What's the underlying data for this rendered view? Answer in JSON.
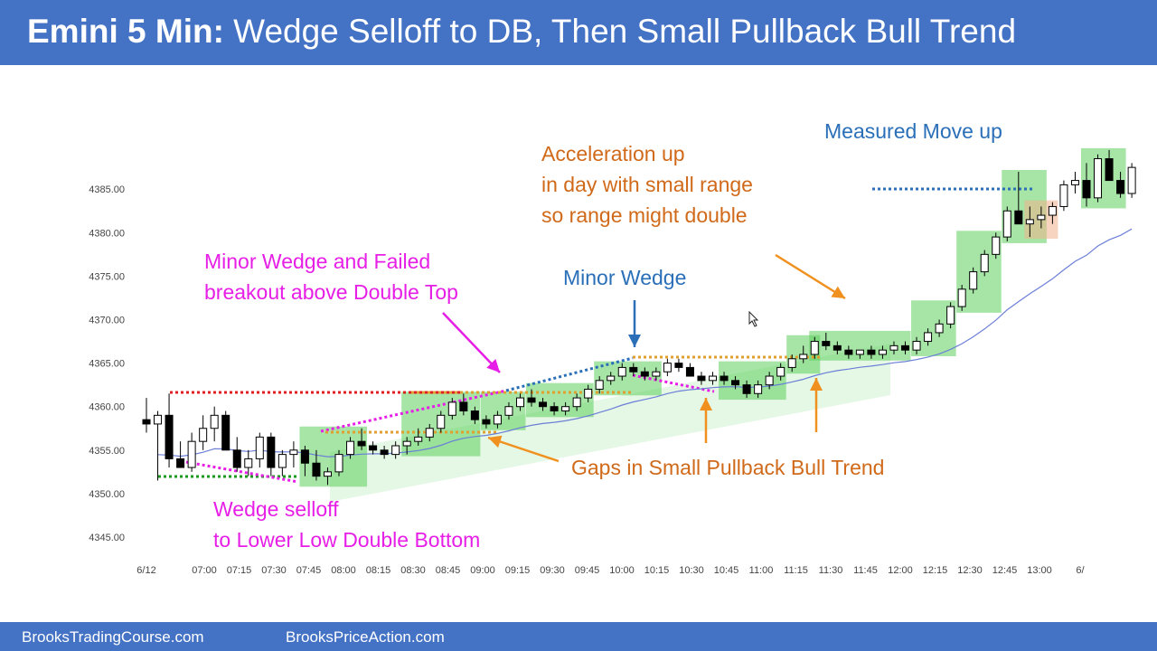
{
  "header": {
    "title_bold": "Emini 5 Min:",
    "title_rest": " Wedge Selloff to DB, Then Small Pullback Bull Trend"
  },
  "footer": {
    "left": "BrooksTradingCourse.com",
    "right": "BrooksPriceAction.com"
  },
  "annotations": {
    "wedge_selloff_1": "Wedge selloff",
    "wedge_selloff_2": "to Lower Low Double Bottom",
    "minor_wedge_failed_1": "Minor Wedge and Failed",
    "minor_wedge_failed_2": "breakout above Double Top",
    "minor_wedge": "Minor Wedge",
    "acceleration_1": "Acceleration up",
    "acceleration_2": "in day with small range",
    "acceleration_3": "so range might double",
    "measured_move": "Measured Move up",
    "gaps": "Gaps in Small Pullback Bull Trend"
  },
  "colors": {
    "header": "#4472c4",
    "bull_highlight": "#5ccf5c",
    "ema": "#6b7fd7",
    "magenta": "#e61ee6",
    "orange": "#d06a1a",
    "blue": "#2a6fb8"
  },
  "chart_data": {
    "type": "candlestick",
    "title": "",
    "ylim": [
      4345,
      4390
    ],
    "y_ticks": [
      "4345.00",
      "4350.00",
      "4355.00",
      "4360.00",
      "4365.00",
      "4370.00",
      "4375.00",
      "4380.00",
      "4385.00"
    ],
    "x_ticks": [
      "6/12",
      "07:00",
      "07:15",
      "07:30",
      "07:45",
      "08:00",
      "08:15",
      "08:30",
      "08:45",
      "09:00",
      "09:15",
      "09:30",
      "09:45",
      "10:00",
      "10:15",
      "10:30",
      "10:45",
      "11:00",
      "11:15",
      "11:30",
      "11:45",
      "12:00",
      "12:15",
      "12:30",
      "12:45",
      "13:00",
      "6/"
    ],
    "grid": false,
    "candles": [
      [
        4358.5,
        4361,
        4357,
        4358
      ],
      [
        4358,
        4359.5,
        4351.5,
        4359
      ],
      [
        4359,
        4361.5,
        4353,
        4354
      ],
      [
        4354,
        4356,
        4353,
        4353
      ],
      [
        4353,
        4357,
        4352.5,
        4356
      ],
      [
        4356,
        4359,
        4355,
        4357.5
      ],
      [
        4357.5,
        4360,
        4356,
        4359
      ],
      [
        4359,
        4359.5,
        4355,
        4355
      ],
      [
        4355,
        4356.5,
        4352.5,
        4353
      ],
      [
        4353,
        4355,
        4352,
        4354
      ],
      [
        4354,
        4357,
        4353,
        4356.5
      ],
      [
        4356.5,
        4357,
        4352,
        4353
      ],
      [
        4353,
        4355,
        4352,
        4354.5
      ],
      [
        4354.5,
        4356,
        4353,
        4355
      ],
      [
        4355,
        4355.5,
        4352,
        4353.5
      ],
      [
        4353.5,
        4355,
        4351.5,
        4352
      ],
      [
        4352,
        4353,
        4351,
        4352.5
      ],
      [
        4352.5,
        4355,
        4352,
        4354.5
      ],
      [
        4354.5,
        4356.5,
        4354,
        4356
      ],
      [
        4356,
        4357.5,
        4355,
        4355.5
      ],
      [
        4355.5,
        4356,
        4354.5,
        4355
      ],
      [
        4355,
        4355.5,
        4354,
        4354.5
      ],
      [
        4354.5,
        4356,
        4354,
        4355.5
      ],
      [
        4355.5,
        4356.5,
        4354.5,
        4356
      ],
      [
        4356,
        4357.5,
        4355.5,
        4356.5
      ],
      [
        4356.5,
        4358,
        4356,
        4357.5
      ],
      [
        4357.5,
        4359.5,
        4357,
        4359
      ],
      [
        4359,
        4361,
        4358.5,
        4360.5
      ],
      [
        4360.5,
        4361.5,
        4359,
        4359.5
      ],
      [
        4359.5,
        4360,
        4358,
        4358.5
      ],
      [
        4358.5,
        4359,
        4357.5,
        4358
      ],
      [
        4358,
        4359.5,
        4357.5,
        4359
      ],
      [
        4359,
        4360.5,
        4358.5,
        4360
      ],
      [
        4360,
        4361.5,
        4359.5,
        4361
      ],
      [
        4361,
        4362,
        4360,
        4360.5
      ],
      [
        4360.5,
        4361,
        4359.5,
        4360
      ],
      [
        4360,
        4360.5,
        4359,
        4359.5
      ],
      [
        4359.5,
        4360.5,
        4359,
        4360
      ],
      [
        4360,
        4361.5,
        4359.5,
        4361
      ],
      [
        4361,
        4362.5,
        4360.5,
        4362
      ],
      [
        4362,
        4363.5,
        4361.5,
        4363
      ],
      [
        4363,
        4364,
        4362.5,
        4363.5
      ],
      [
        4363.5,
        4365,
        4363,
        4364.5
      ],
      [
        4364.5,
        4365,
        4363.5,
        4364
      ],
      [
        4364,
        4364.5,
        4363,
        4363.5
      ],
      [
        4363.5,
        4364.5,
        4363,
        4364
      ],
      [
        4364,
        4365.5,
        4363.5,
        4365
      ],
      [
        4365,
        4365.5,
        4364,
        4364.5
      ],
      [
        4364.5,
        4365,
        4363.5,
        4363.5
      ],
      [
        4363.5,
        4364,
        4362.5,
        4363
      ],
      [
        4363,
        4364,
        4362.5,
        4363.5
      ],
      [
        4363.5,
        4364,
        4362.5,
        4363
      ],
      [
        4363,
        4363.5,
        4362,
        4362.5
      ],
      [
        4362.5,
        4363,
        4361,
        4361.5
      ],
      [
        4361.5,
        4363,
        4361,
        4362.5
      ],
      [
        4362.5,
        4364,
        4362,
        4363.5
      ],
      [
        4363.5,
        4365,
        4363,
        4364.5
      ],
      [
        4364.5,
        4366,
        4364,
        4365.5
      ],
      [
        4365.5,
        4367,
        4365,
        4366
      ],
      [
        4366,
        4368,
        4365.5,
        4367.5
      ],
      [
        4367.5,
        4368.5,
        4366.5,
        4367
      ],
      [
        4367,
        4367.5,
        4366,
        4366.5
      ],
      [
        4366.5,
        4367,
        4365.5,
        4366
      ],
      [
        4366,
        4366.5,
        4365.5,
        4366.5
      ],
      [
        4366.5,
        4367,
        4365.5,
        4366
      ],
      [
        4366,
        4367,
        4365.5,
        4366.5
      ],
      [
        4366.5,
        4367.5,
        4366,
        4367
      ],
      [
        4367,
        4367.5,
        4366,
        4366.5
      ],
      [
        4366.5,
        4368,
        4366,
        4367.5
      ],
      [
        4367.5,
        4369,
        4367,
        4368.5
      ],
      [
        4368.5,
        4370,
        4368,
        4369.5
      ],
      [
        4369.5,
        4372,
        4369,
        4371.5
      ],
      [
        4371.5,
        4374,
        4371,
        4373.5
      ],
      [
        4373.5,
        4376,
        4373,
        4375.5
      ],
      [
        4375.5,
        4378,
        4375,
        4377.5
      ],
      [
        4377.5,
        4380,
        4377,
        4379.5
      ],
      [
        4379.5,
        4383,
        4379,
        4382.5
      ],
      [
        4382.5,
        4387,
        4381,
        4381
      ],
      [
        4381,
        4383,
        4379.5,
        4381.5
      ],
      [
        4381.5,
        4383,
        4380.5,
        4382
      ],
      [
        4382,
        4383.5,
        4381,
        4383
      ],
      [
        4383,
        4386,
        4382.5,
        4385.5
      ],
      [
        4385.5,
        4387,
        4384.5,
        4386
      ],
      [
        4386,
        4388,
        4383,
        4384
      ],
      [
        4384,
        4389,
        4383.5,
        4388.5
      ],
      [
        4388.5,
        4389.5,
        4386,
        4386
      ],
      [
        4386,
        4387,
        4384,
        4384.5
      ],
      [
        4384.5,
        4388,
        4384,
        4387.5
      ]
    ]
  }
}
